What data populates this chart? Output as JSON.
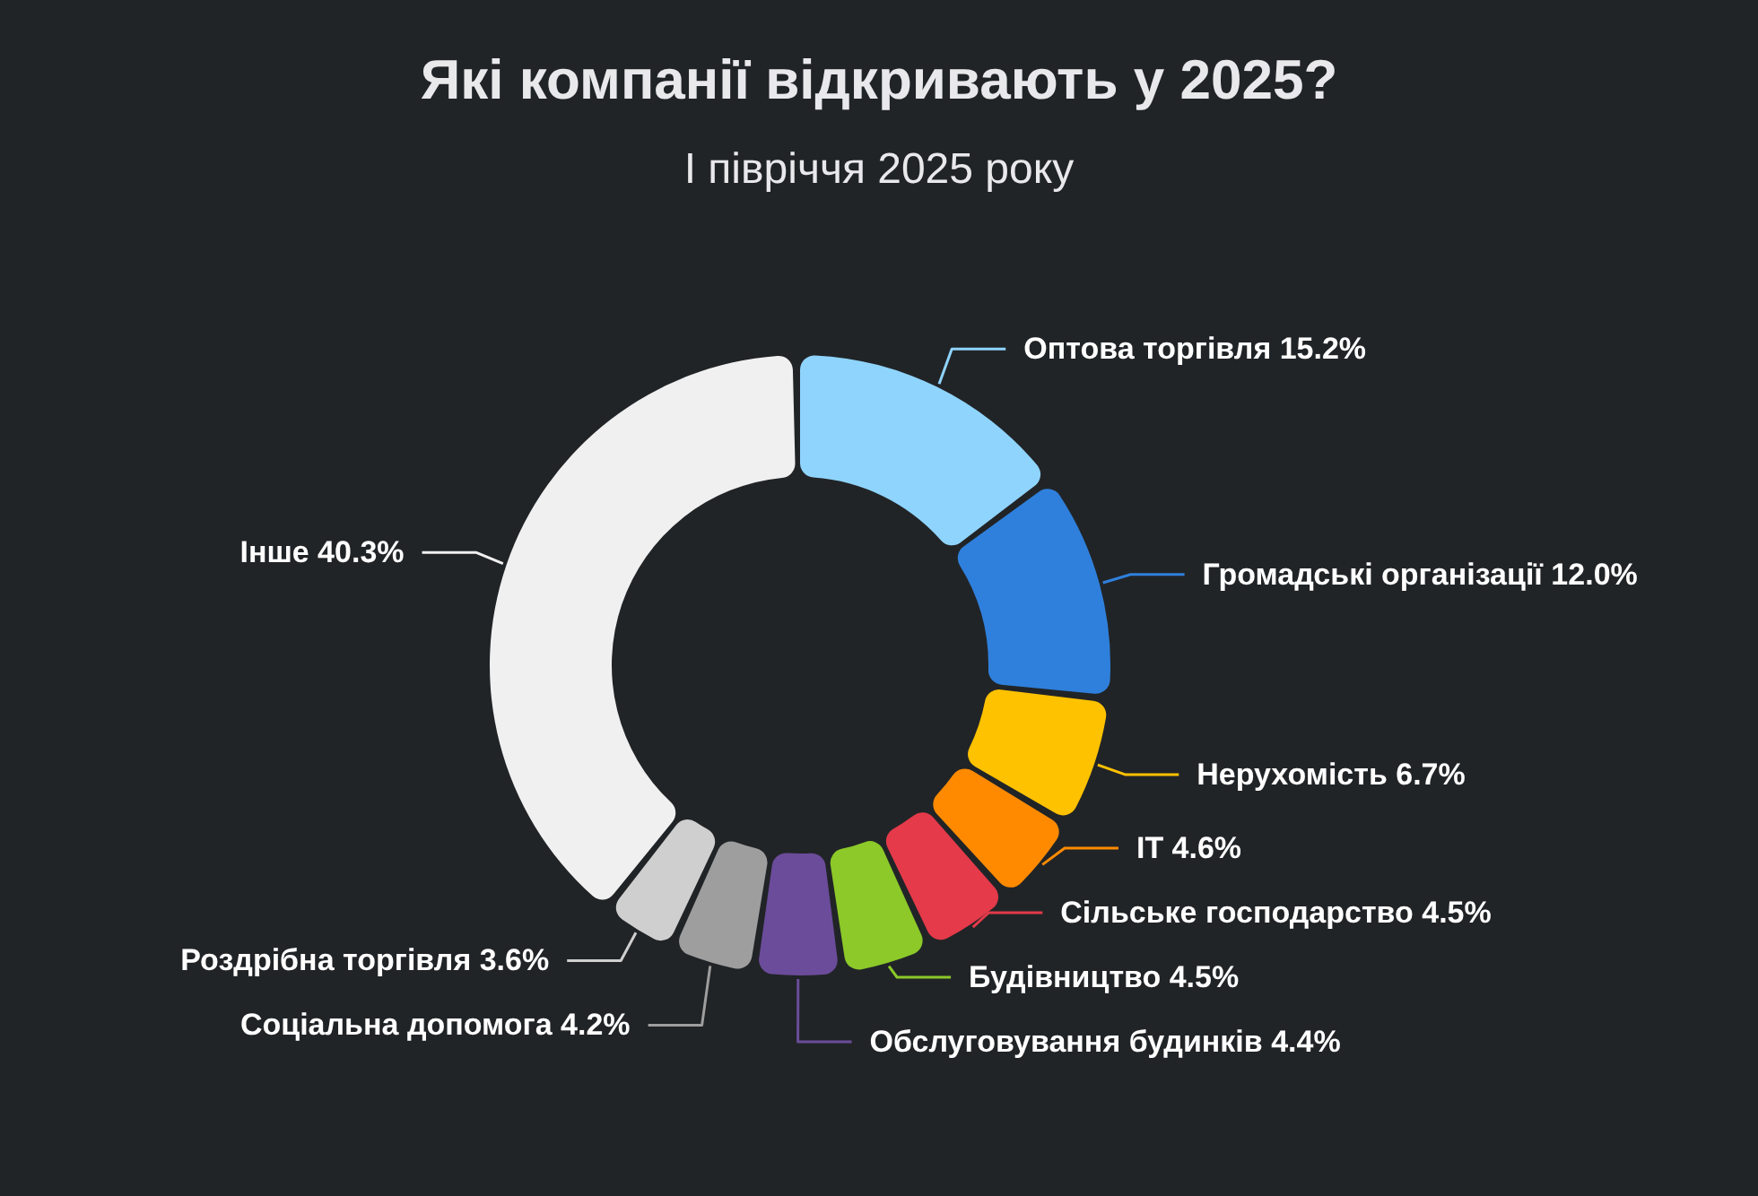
{
  "chart_data": {
    "type": "donut",
    "title": "Які компанії відкривають у 2025?",
    "subtitle": "І півріччя 2025 року",
    "categories": [
      "Оптова торгівля",
      "Громадські організації",
      "Нерухомість",
      "IT",
      "Сільське господарство",
      "Будівництво",
      "Обслуговування будинків",
      "Соціальна допомога",
      "Роздрібна торгівля",
      "Інше"
    ],
    "values": [
      15.2,
      12.0,
      6.7,
      4.6,
      4.5,
      4.5,
      4.4,
      4.2,
      3.6,
      40.3
    ],
    "colors": [
      "#8fd4fd",
      "#2f80dc",
      "#ffc200",
      "#ff8a00",
      "#e43a4a",
      "#8cc929",
      "#6b4c9a",
      "#9e9e9e",
      "#cfcfcf",
      "#f0f0f0"
    ],
    "value_labels": [
      "15.2%",
      "12.0%",
      "6.7%",
      "4.6%",
      "4.5%",
      "4.5%",
      "4.4%",
      "4.2%",
      "3.6%",
      "40.3%"
    ]
  }
}
